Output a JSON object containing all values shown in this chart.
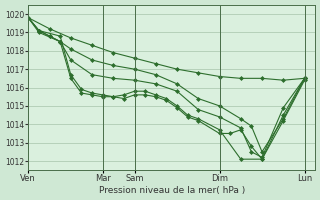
{
  "title": "",
  "xlabel": "Pression niveau de la mer( hPa )",
  "background_color": "#cfe8d4",
  "plot_bg_color": "#daf0de",
  "grid_color": "#b0ccb4",
  "line_color": "#2d6e2d",
  "ylim": [
    1011.5,
    1020.5
  ],
  "yticks": [
    1012,
    1013,
    1014,
    1015,
    1016,
    1017,
    1018,
    1019,
    1020
  ],
  "xtick_labels": [
    "Ven",
    "Mar",
    "Sam",
    "Dim",
    "Lun"
  ],
  "xtick_positions": [
    0,
    7,
    10,
    18,
    26
  ],
  "xlim": [
    0,
    27
  ],
  "vlines": [
    0,
    7,
    10,
    18,
    26
  ],
  "lines": [
    {
      "x": [
        0,
        2,
        4,
        6,
        8,
        10,
        12,
        14,
        16,
        18,
        20,
        22,
        24,
        26
      ],
      "y": [
        1019.8,
        1019.2,
        1018.7,
        1018.3,
        1017.9,
        1017.6,
        1017.3,
        1017.0,
        1016.8,
        1016.6,
        1016.5,
        1016.5,
        1016.4,
        1016.5
      ],
      "marker": "D",
      "markersize": 2.0
    },
    {
      "x": [
        0,
        1,
        3,
        4,
        5,
        6,
        7,
        8,
        9,
        10,
        11,
        12,
        13,
        14,
        15,
        16,
        18,
        20,
        22,
        24,
        26
      ],
      "y": [
        1019.8,
        1019.1,
        1018.8,
        1016.7,
        1015.9,
        1015.7,
        1015.6,
        1015.5,
        1015.6,
        1015.8,
        1015.8,
        1015.6,
        1015.4,
        1015.0,
        1014.5,
        1014.3,
        1013.7,
        1012.1,
        1012.1,
        1014.5,
        1016.5
      ],
      "marker": "D",
      "markersize": 2.0
    },
    {
      "x": [
        0,
        1,
        3,
        4,
        5,
        6,
        7,
        8,
        9,
        10,
        11,
        12,
        13,
        14,
        15,
        16,
        18,
        19,
        20,
        21,
        22,
        24,
        26
      ],
      "y": [
        1019.8,
        1019.0,
        1018.5,
        1016.5,
        1015.7,
        1015.6,
        1015.5,
        1015.5,
        1015.4,
        1015.6,
        1015.6,
        1015.5,
        1015.3,
        1014.9,
        1014.4,
        1014.2,
        1013.5,
        1013.5,
        1013.7,
        1012.8,
        1012.1,
        1014.2,
        1016.4
      ],
      "marker": "D",
      "markersize": 2.0
    },
    {
      "x": [
        0,
        1,
        2,
        3,
        4,
        6,
        8,
        10,
        12,
        14,
        16,
        18,
        20,
        21,
        22,
        24,
        26
      ],
      "y": [
        1019.8,
        1019.1,
        1018.8,
        1018.5,
        1017.5,
        1016.7,
        1016.5,
        1016.4,
        1016.2,
        1015.8,
        1014.8,
        1014.4,
        1013.8,
        1012.5,
        1012.2,
        1014.9,
        1016.5
      ],
      "marker": "D",
      "markersize": 2.0
    },
    {
      "x": [
        0,
        1,
        2,
        3,
        4,
        6,
        8,
        10,
        12,
        14,
        16,
        18,
        20,
        21,
        22,
        24,
        26
      ],
      "y": [
        1019.8,
        1019.1,
        1018.8,
        1018.5,
        1018.1,
        1017.5,
        1017.2,
        1017.0,
        1016.7,
        1016.2,
        1015.4,
        1015.0,
        1014.3,
        1013.9,
        1012.5,
        1014.3,
        1016.5
      ],
      "marker": "D",
      "markersize": 2.0
    }
  ]
}
